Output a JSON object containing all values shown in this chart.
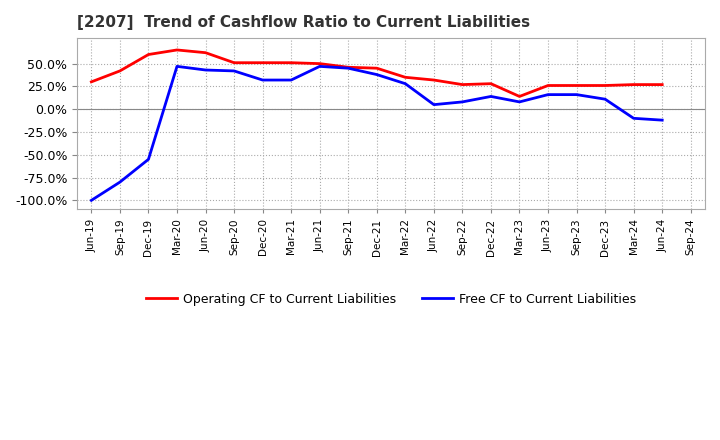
{
  "title": "[2207]  Trend of Cashflow Ratio to Current Liabilities",
  "x_labels": [
    "Jun-19",
    "Sep-19",
    "Dec-19",
    "Mar-20",
    "Jun-20",
    "Sep-20",
    "Dec-20",
    "Mar-21",
    "Jun-21",
    "Sep-21",
    "Dec-21",
    "Mar-22",
    "Jun-22",
    "Sep-22",
    "Dec-22",
    "Mar-23",
    "Jun-23",
    "Sep-23",
    "Dec-23",
    "Mar-24",
    "Jun-24",
    "Sep-24"
  ],
  "operating_cf": [
    30,
    42,
    60,
    65,
    62,
    51,
    51,
    51,
    50,
    46,
    45,
    35,
    32,
    27,
    28,
    14,
    26,
    26,
    26,
    27,
    27,
    null
  ],
  "free_cf": [
    -100,
    -80,
    -55,
    47,
    43,
    42,
    32,
    32,
    47,
    45,
    38,
    28,
    5,
    8,
    14,
    8,
    16,
    16,
    11,
    -10,
    -12,
    null
  ],
  "ylim": [
    -110,
    78
  ],
  "yticks": [
    -100,
    -75,
    -50,
    -25,
    0,
    25,
    50
  ],
  "operating_color": "#ff0000",
  "free_color": "#0000ff",
  "grid_color": "#aaaaaa",
  "grid_style": "dotted",
  "background_color": "#ffffff",
  "legend_labels": [
    "Operating CF to Current Liabilities",
    "Free CF to Current Liabilities"
  ]
}
